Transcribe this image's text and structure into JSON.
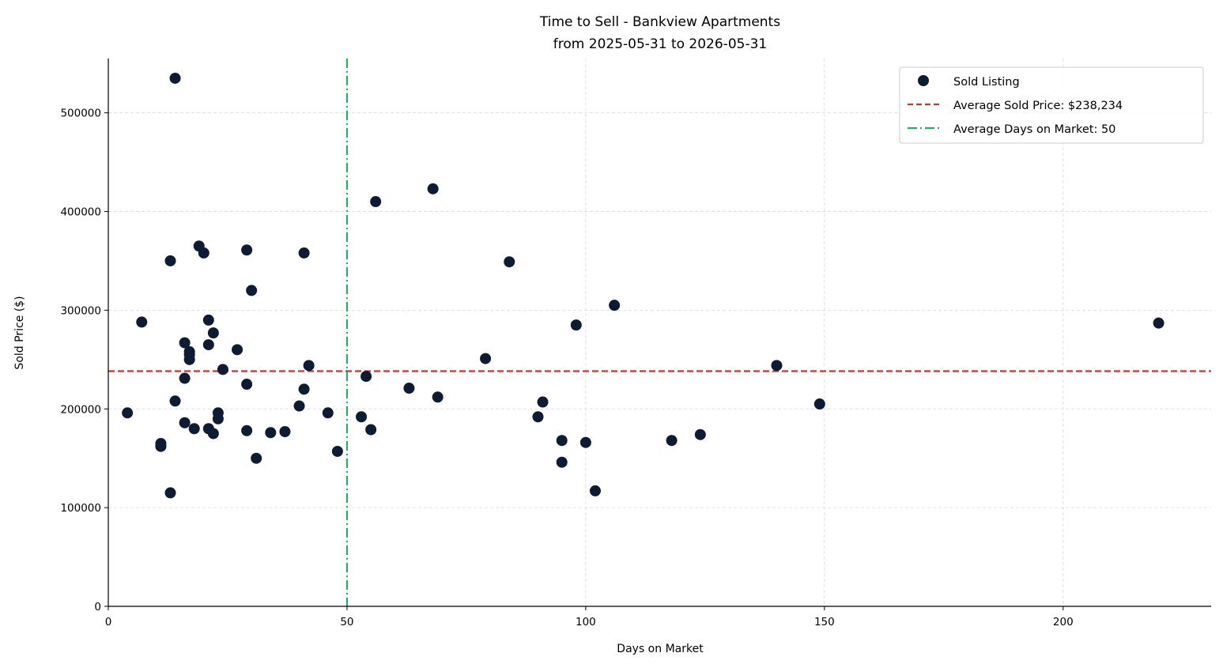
{
  "chart_data": {
    "type": "scatter",
    "title": "Time to Sell - Bankview Apartments",
    "subtitle": "from 2025-05-31 to 2026-05-31",
    "xlabel": "Days on Market",
    "ylabel": "Sold Price ($)",
    "xlim": [
      0,
      231
    ],
    "ylim": [
      0,
      555000
    ],
    "xticks": [
      0,
      50,
      100,
      150,
      200
    ],
    "yticks": [
      0,
      100000,
      200000,
      300000,
      400000,
      500000
    ],
    "grid": true,
    "legend_position": "top-right",
    "series": [
      {
        "name": "Sold Listing",
        "color": "#0d1b33",
        "points": [
          [
            4,
            196000
          ],
          [
            7,
            288000
          ],
          [
            11,
            165000
          ],
          [
            11,
            162000
          ],
          [
            13,
            350000
          ],
          [
            13,
            115000
          ],
          [
            14,
            535000
          ],
          [
            14,
            208000
          ],
          [
            16,
            267000
          ],
          [
            16,
            231000
          ],
          [
            16,
            186000
          ],
          [
            17,
            258000
          ],
          [
            17,
            255000
          ],
          [
            17,
            250000
          ],
          [
            18,
            180000
          ],
          [
            19,
            365000
          ],
          [
            20,
            358000
          ],
          [
            21,
            290000
          ],
          [
            21,
            265000
          ],
          [
            21,
            180000
          ],
          [
            22,
            277000
          ],
          [
            22,
            175000
          ],
          [
            23,
            196000
          ],
          [
            23,
            190000
          ],
          [
            24,
            240000
          ],
          [
            27,
            260000
          ],
          [
            29,
            361000
          ],
          [
            29,
            225000
          ],
          [
            29,
            178000
          ],
          [
            30,
            320000
          ],
          [
            31,
            150000
          ],
          [
            34,
            176000
          ],
          [
            37,
            177000
          ],
          [
            40,
            203000
          ],
          [
            41,
            358000
          ],
          [
            41,
            220000
          ],
          [
            42,
            244000
          ],
          [
            46,
            196000
          ],
          [
            48,
            157000
          ],
          [
            53,
            192000
          ],
          [
            54,
            233000
          ],
          [
            55,
            179000
          ],
          [
            56,
            410000
          ],
          [
            63,
            221000
          ],
          [
            68,
            423000
          ],
          [
            69,
            212000
          ],
          [
            79,
            251000
          ],
          [
            84,
            349000
          ],
          [
            90,
            192000
          ],
          [
            91,
            207000
          ],
          [
            95,
            168000
          ],
          [
            95,
            146000
          ],
          [
            98,
            285000
          ],
          [
            100,
            166000
          ],
          [
            102,
            117000
          ],
          [
            106,
            305000
          ],
          [
            118,
            168000
          ],
          [
            124,
            174000
          ],
          [
            140,
            244000
          ],
          [
            149,
            205000
          ],
          [
            220,
            287000
          ]
        ]
      }
    ],
    "reference_lines": [
      {
        "name": "Average Sold Price: $238,234",
        "orientation": "horizontal",
        "value": 238234,
        "color": "#c0392b",
        "style": "dashed"
      },
      {
        "name": "Average Days on Market: 50",
        "orientation": "vertical",
        "value": 50,
        "color": "#27ae60",
        "style": "dashdot"
      }
    ]
  }
}
